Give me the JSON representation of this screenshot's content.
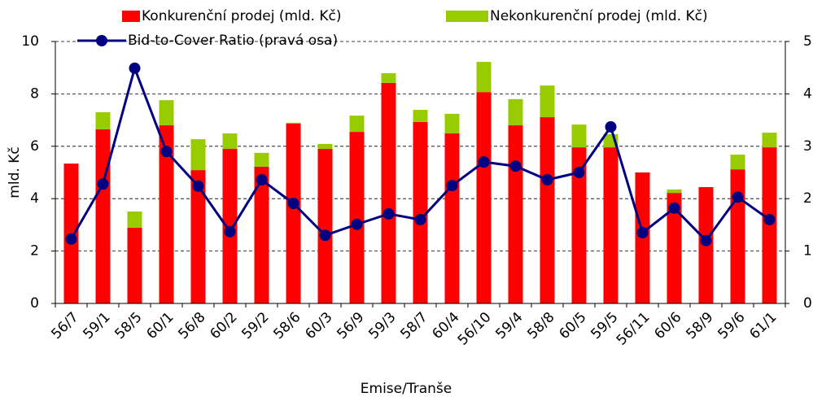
{
  "chart_data": {
    "type": "bar",
    "x_label": "Emise/Tranše",
    "y_label": "mld. Kč",
    "categories": [
      "56/7",
      "59/1",
      "58/5",
      "60/1",
      "56/8",
      "60/2",
      "59/2",
      "58/6",
      "60/3",
      "56/9",
      "59/3",
      "58/7",
      "60/4",
      "56/10",
      "59/4",
      "58/8",
      "60/5",
      "59/5",
      "56/11",
      "60/6",
      "58/9",
      "59/6",
      "61/1"
    ],
    "series": [
      {
        "name": "Konkurenční prodej (mld. Kč)",
        "color": "#ff0000",
        "values": [
          5.34,
          6.65,
          2.89,
          6.8,
          5.09,
          5.9,
          5.22,
          6.87,
          5.9,
          6.55,
          8.42,
          6.93,
          6.49,
          8.07,
          6.8,
          7.11,
          5.96,
          5.96,
          5.0,
          4.22,
          4.44,
          5.12,
          5.96
        ]
      },
      {
        "name": "Nekonkurenční prodej (mld. Kč)",
        "color": "#99cc00",
        "values": [
          0,
          0.65,
          0.62,
          0.96,
          1.18,
          0.59,
          0.53,
          0.03,
          0.19,
          0.62,
          0.37,
          0.46,
          0.75,
          1.15,
          1.0,
          1.21,
          0.87,
          0.5,
          0,
          0.13,
          0,
          0.56,
          0.56
        ]
      },
      {
        "name": "Bid-to-Cover Ratio (pravá osa)",
        "color": "#000080",
        "axis": "y2",
        "type": "line",
        "values": [
          1.23,
          2.28,
          4.49,
          2.9,
          2.24,
          1.37,
          2.36,
          1.91,
          1.3,
          1.51,
          1.71,
          1.6,
          2.25,
          2.7,
          2.62,
          2.36,
          2.5,
          3.37,
          1.35,
          1.82,
          1.2,
          2.03,
          1.6
        ]
      }
    ],
    "ylim": [
      0,
      10
    ],
    "yticks": [
      0,
      2,
      4,
      6,
      8,
      10
    ],
    "y2lim": [
      0,
      5
    ],
    "y2ticks": [
      0,
      1,
      2,
      3,
      4,
      5
    ],
    "grid": true
  }
}
